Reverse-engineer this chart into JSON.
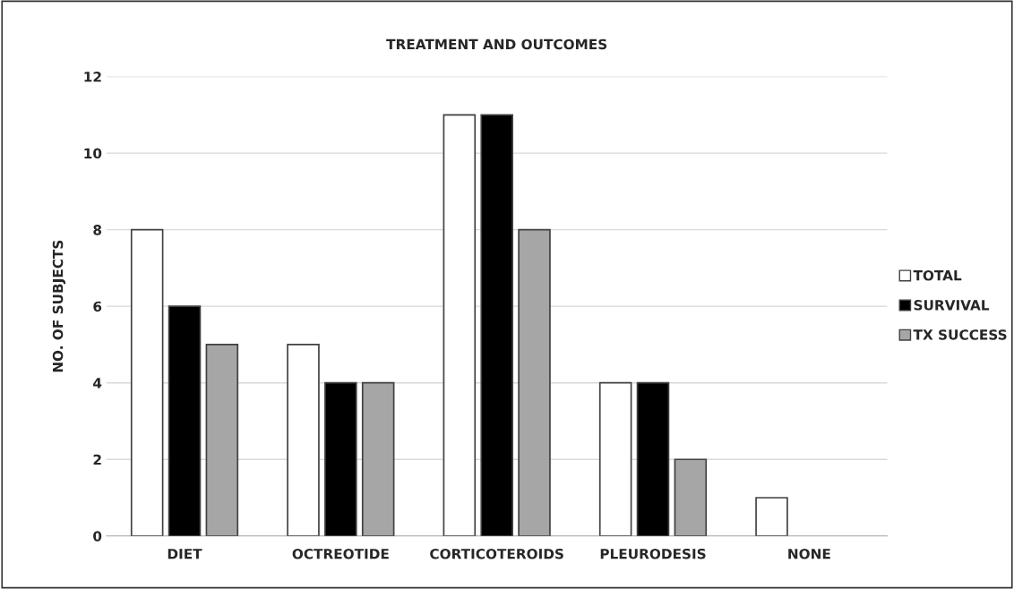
{
  "chart_data": {
    "type": "bar",
    "title": "TREATMENT AND OUTCOMES",
    "ylabel": "NO. OF SUBJECTS",
    "categories": [
      "DIET",
      "OCTREOTIDE",
      "CORTICOTEROIDS",
      "PLEURODESIS",
      "NONE"
    ],
    "series": [
      {
        "name": "TOTAL",
        "color": "#ffffff",
        "values": [
          8,
          5,
          11,
          4,
          1
        ]
      },
      {
        "name": "SURVIVAL",
        "color": "#000000",
        "values": [
          6,
          4,
          11,
          4,
          null
        ]
      },
      {
        "name": "TX SUCCESS",
        "color": "#a6a6a6",
        "values": [
          5,
          4,
          8,
          2,
          null
        ]
      }
    ],
    "ylim": [
      0,
      12
    ],
    "yticks": [
      0,
      2,
      4,
      6,
      8,
      10,
      12
    ],
    "grid": "y",
    "legend": "right"
  }
}
